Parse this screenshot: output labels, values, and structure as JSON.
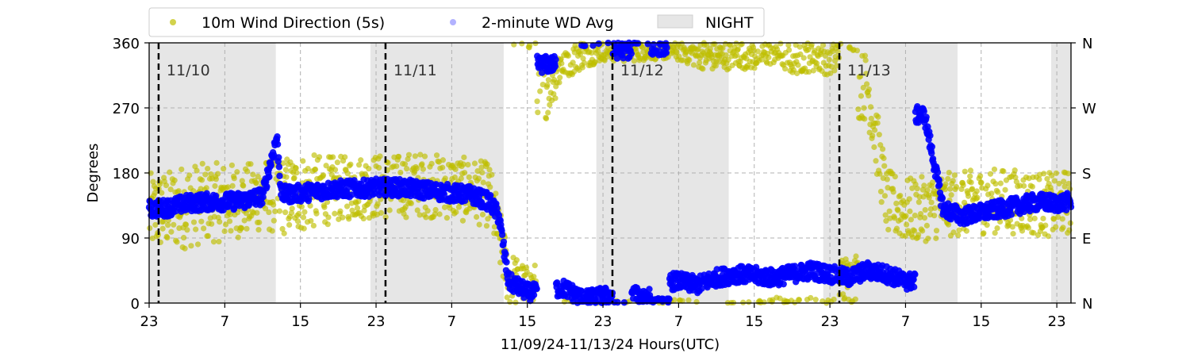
{
  "chart_data": {
    "type": "scatter",
    "title": "",
    "xlabel": "11/09/24-11/13/24  Hours(UTC)",
    "ylabel": "Degrees",
    "xlim": [
      23,
      120.5
    ],
    "ylim": [
      0,
      360
    ],
    "x_tick_positions": [
      23,
      31,
      39,
      47,
      55,
      63,
      71,
      79,
      87,
      95,
      103,
      111,
      119
    ],
    "x_tick_labels": [
      "23",
      "7",
      "15",
      "23",
      "7",
      "15",
      "23",
      "7",
      "15",
      "23",
      "7",
      "15",
      "23"
    ],
    "y_ticks": [
      0,
      90,
      180,
      270,
      360
    ],
    "y_tick_labels": [
      "0",
      "90",
      "180",
      "270",
      "360"
    ],
    "right_axis_labels": [
      "N",
      "E",
      "S",
      "W",
      "N"
    ],
    "grid": true,
    "legend_position": "top, above plot",
    "legend": [
      {
        "label": "10m Wind Direction (5s)",
        "color": "#bfbf00",
        "marker": "circle"
      },
      {
        "label": "2-minute WD Avg",
        "color": "#0000ff",
        "marker": "circle"
      },
      {
        "label": "NIGHT",
        "color": "#e6e6e6",
        "marker": "rect"
      }
    ],
    "night_periods": [
      [
        23,
        36.4
      ],
      [
        46.4,
        60.5
      ],
      [
        70.3,
        84.3
      ],
      [
        94.3,
        108.5
      ],
      [
        118.4,
        120.5
      ]
    ],
    "day_markers": [
      {
        "x": 24,
        "label": "11/10"
      },
      {
        "x": 48,
        "label": "11/11"
      },
      {
        "x": 72,
        "label": "11/12"
      },
      {
        "x": 96,
        "label": "11/13"
      }
    ],
    "series": [
      {
        "name": "10m Wind Direction (5s)",
        "color": "#bfbf00",
        "x": [
          23,
          25,
          27,
          29,
          31,
          33,
          35,
          37,
          39,
          41,
          43,
          45,
          47,
          49,
          51,
          53,
          55,
          57,
          59,
          61,
          63,
          65,
          67,
          69,
          71,
          73,
          75,
          77,
          79,
          81,
          83,
          85,
          87,
          89,
          91,
          93,
          95,
          97,
          99,
          101,
          103,
          105,
          107,
          109,
          111,
          113,
          115,
          117,
          119,
          120
        ],
        "y": [
          125,
          128,
          135,
          138,
          140,
          142,
          150,
          148,
          152,
          155,
          158,
          160,
          162,
          160,
          165,
          162,
          160,
          155,
          150,
          35,
          20,
          300,
          340,
          345,
          350,
          348,
          350,
          352,
          350,
          345,
          340,
          345,
          342,
          350,
          340,
          345,
          340,
          30,
          300,
          140,
          128,
          130,
          135,
          138,
          140,
          142,
          140,
          138,
          135,
          140
        ],
        "yerr": [
          55,
          55,
          60,
          55,
          55,
          50,
          50,
          55,
          55,
          50,
          45,
          45,
          45,
          45,
          45,
          45,
          45,
          45,
          45,
          40,
          30,
          45,
          30,
          20,
          15,
          15,
          15,
          15,
          15,
          20,
          20,
          20,
          20,
          20,
          25,
          25,
          25,
          40,
          50,
          45,
          45,
          45,
          45,
          45,
          45,
          45,
          45,
          45,
          45,
          45
        ]
      },
      {
        "name": "2-minute WD Avg",
        "color": "#0000ff",
        "x": [
          23,
          25,
          27,
          29,
          31,
          33,
          35,
          36.5,
          37,
          39,
          41,
          43,
          45,
          47,
          49,
          51,
          53,
          55,
          57,
          59,
          60,
          61,
          63,
          65,
          67,
          69,
          71,
          73,
          75,
          77,
          79,
          81,
          83,
          85,
          87,
          89,
          91,
          93,
          95,
          97,
          99,
          101,
          103,
          105,
          107,
          109,
          111,
          113,
          115,
          117,
          119,
          120
        ],
        "y": [
          130,
          132,
          138,
          140,
          140,
          142,
          148,
          230,
          150,
          152,
          155,
          158,
          158,
          160,
          160,
          158,
          155,
          152,
          150,
          140,
          120,
          30,
          15,
          330,
          20,
          5,
          10,
          350,
          10,
          355,
          30,
          25,
          35,
          40,
          38,
          35,
          40,
          45,
          40,
          35,
          45,
          40,
          30,
          260,
          130,
          120,
          125,
          130,
          135,
          140,
          138,
          140
        ]
      }
    ]
  }
}
